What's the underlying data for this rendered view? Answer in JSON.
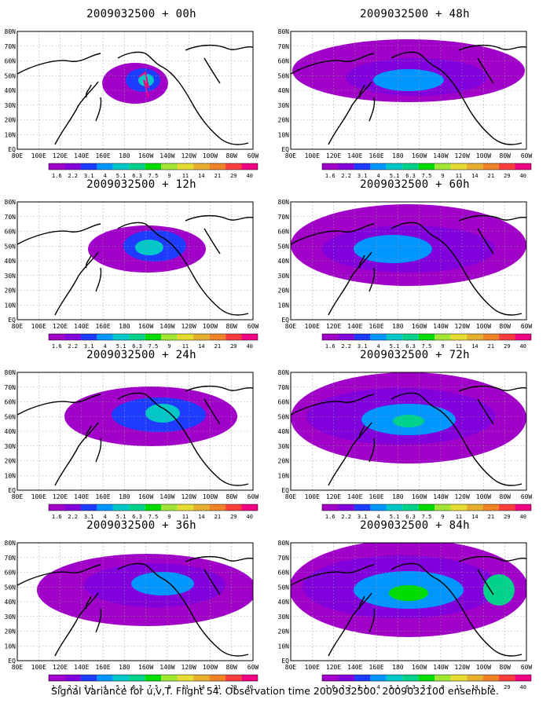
{
  "caption": "Signal Variance for u,v,T. Flight 54. Observation time 2009032500. 2009032100 ensemble.",
  "panels": [
    {
      "title": "2009032500 + 00h",
      "lead_hours": 0
    },
    {
      "title": "2009032500 + 12h",
      "lead_hours": 12
    },
    {
      "title": "2009032500 + 24h",
      "lead_hours": 24
    },
    {
      "title": "2009032500 + 36h",
      "lead_hours": 36
    },
    {
      "title": "2009032500 + 48h",
      "lead_hours": 48
    },
    {
      "title": "2009032500 + 60h",
      "lead_hours": 60
    },
    {
      "title": "2009032500 + 72h",
      "lead_hours": 72
    },
    {
      "title": "2009032500 + 84h",
      "lead_hours": 84
    }
  ],
  "map": {
    "lon_labels": [
      "80E",
      "100E",
      "120E",
      "140E",
      "160E",
      "180",
      "160W",
      "140W",
      "120W",
      "100W",
      "80W",
      "60W"
    ],
    "lat_labels": [
      "EQ",
      "10N",
      "20N",
      "30N",
      "40N",
      "50N",
      "60N",
      "70N",
      "80N"
    ]
  },
  "colorbar": {
    "levels": [
      "1.6",
      "2.2",
      "3.1",
      "4",
      "5.1",
      "6.3",
      "7.5",
      "9",
      "11",
      "14",
      "21",
      "29",
      "40"
    ],
    "colors": [
      "#a000c8",
      "#8200dc",
      "#1e3cff",
      "#0096ff",
      "#00c8c8",
      "#00d28c",
      "#00dc00",
      "#a0e632",
      "#e6dc32",
      "#e6af2d",
      "#f08228",
      "#fa3c3c",
      "#f00082"
    ]
  }
}
